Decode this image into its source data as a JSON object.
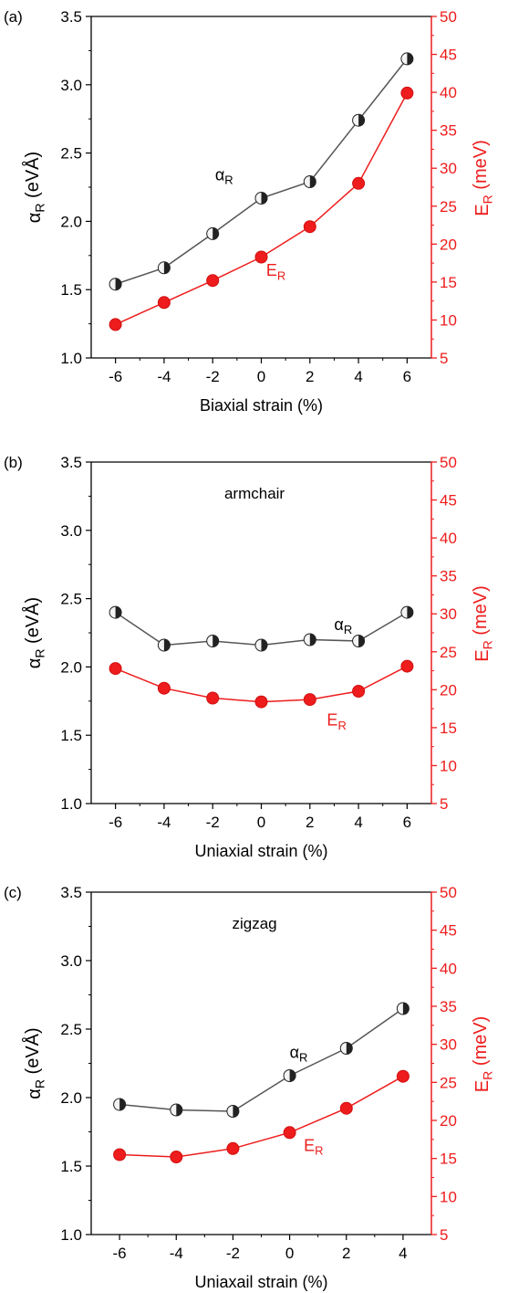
{
  "colors": {
    "left_axis": "#000000",
    "right_axis": "#ee1c1c",
    "alpha_line": "#555555",
    "energy_line": "#ee1c1c"
  },
  "chart_data": [
    {
      "type": "line",
      "panel_label": "(a)",
      "inner_label": "",
      "xlabel": "Biaxial strain (%)",
      "ylabel_left": {
        "main": "α",
        "sub": "R",
        "rest": " (eVÅ)"
      },
      "ylabel_right": {
        "main": "E",
        "sub": "R",
        "rest": " (meV)"
      },
      "xlim": [
        -7,
        7
      ],
      "xticks": [
        -6,
        -4,
        -2,
        0,
        2,
        4,
        6
      ],
      "xtick_labels": [
        "-6",
        "-4",
        "-2",
        "0",
        "2",
        "4",
        "6"
      ],
      "ylim_left": [
        1.0,
        3.5
      ],
      "yticks_left": [
        1.0,
        1.5,
        2.0,
        2.5,
        3.0,
        3.5
      ],
      "ytick_labels_left": [
        "1.0",
        "1.5",
        "2.0",
        "2.5",
        "3.0",
        "3.5"
      ],
      "ylim_right": [
        5,
        50
      ],
      "yticks_right": [
        5,
        10,
        15,
        20,
        25,
        30,
        35,
        40,
        45,
        50
      ],
      "ytick_labels_right": [
        "5",
        "10",
        "15",
        "20",
        "25",
        "30",
        "35",
        "40",
        "45",
        "50"
      ],
      "x": [
        -6,
        -4,
        -2,
        0,
        2,
        4,
        6
      ],
      "series": [
        {
          "name": {
            "main": "α",
            "sub": "R"
          },
          "axis": "left",
          "values": [
            1.54,
            1.66,
            1.91,
            2.17,
            2.29,
            2.74,
            3.19
          ]
        },
        {
          "name": {
            "main": "E",
            "sub": "R"
          },
          "axis": "right",
          "values": [
            9.4,
            12.3,
            15.2,
            18.3,
            22.3,
            28.0,
            39.9
          ]
        }
      ],
      "annotations": [
        {
          "series": 0,
          "x": -1.9,
          "y": 2.3,
          "axis": "left"
        },
        {
          "series": 1,
          "x": 0.2,
          "y": 1.6,
          "axis": "left"
        }
      ]
    },
    {
      "type": "line",
      "panel_label": "(b)",
      "inner_label": "armchair",
      "xlabel": "Uniaxial strain (%)",
      "ylabel_left": {
        "main": "α",
        "sub": "R",
        "rest": " (eVÅ)"
      },
      "ylabel_right": {
        "main": "E",
        "sub": "R",
        "rest": " (meV)"
      },
      "xlim": [
        -7,
        7
      ],
      "xticks": [
        -6,
        -4,
        -2,
        0,
        2,
        4,
        6
      ],
      "xtick_labels": [
        "-6",
        "-4",
        "-2",
        "0",
        "2",
        "4",
        "6"
      ],
      "ylim_left": [
        1.0,
        3.5
      ],
      "yticks_left": [
        1.0,
        1.5,
        2.0,
        2.5,
        3.0,
        3.5
      ],
      "ytick_labels_left": [
        "1.0",
        "1.5",
        "2.0",
        "2.5",
        "3.0",
        "3.5"
      ],
      "ylim_right": [
        5,
        50
      ],
      "yticks_right": [
        5,
        10,
        15,
        20,
        25,
        30,
        35,
        40,
        45,
        50
      ],
      "ytick_labels_right": [
        "5",
        "10",
        "15",
        "20",
        "25",
        "30",
        "35",
        "40",
        "45",
        "50"
      ],
      "x": [
        -6,
        -4,
        -2,
        0,
        2,
        4,
        6
      ],
      "series": [
        {
          "name": {
            "main": "α",
            "sub": "R"
          },
          "axis": "left",
          "values": [
            2.4,
            2.16,
            2.19,
            2.16,
            2.2,
            2.19,
            2.4
          ]
        },
        {
          "name": {
            "main": "E",
            "sub": "R"
          },
          "axis": "right",
          "values": [
            22.8,
            20.2,
            18.9,
            18.4,
            18.7,
            19.8,
            23.1
          ]
        }
      ],
      "annotations": [
        {
          "series": 0,
          "x": 3.0,
          "y": 2.27,
          "axis": "left"
        },
        {
          "series": 1,
          "x": 2.7,
          "y": 1.57,
          "axis": "left"
        }
      ]
    },
    {
      "type": "line",
      "panel_label": "(c)",
      "inner_label": "zigzag",
      "xlabel": "Uniaxail  strain (%)",
      "ylabel_left": {
        "main": "α",
        "sub": "R",
        "rest": " (eVÅ)"
      },
      "ylabel_right": {
        "main": "E",
        "sub": "R",
        "rest": " (meV)"
      },
      "xlim": [
        -7,
        5
      ],
      "xticks": [
        -6,
        -4,
        -2,
        0,
        2,
        4
      ],
      "xtick_labels": [
        "-6",
        "-4",
        "-2",
        "0",
        "2",
        "4"
      ],
      "ylim_left": [
        1.0,
        3.5
      ],
      "yticks_left": [
        1.0,
        1.5,
        2.0,
        2.5,
        3.0,
        3.5
      ],
      "ytick_labels_left": [
        "1.0",
        "1.5",
        "2.0",
        "2.5",
        "3.0",
        "3.5"
      ],
      "ylim_right": [
        5,
        50
      ],
      "yticks_right": [
        5,
        10,
        15,
        20,
        25,
        30,
        35,
        40,
        45,
        50
      ],
      "ytick_labels_right": [
        "5",
        "10",
        "15",
        "20",
        "25",
        "30",
        "35",
        "40",
        "45",
        "50"
      ],
      "x": [
        -6,
        -4,
        -2,
        0,
        2,
        4
      ],
      "series": [
        {
          "name": {
            "main": "α",
            "sub": "R"
          },
          "axis": "left",
          "values": [
            1.95,
            1.91,
            1.9,
            2.16,
            2.36,
            2.65
          ]
        },
        {
          "name": {
            "main": "E",
            "sub": "R"
          },
          "axis": "right",
          "values": [
            15.5,
            15.2,
            16.3,
            18.4,
            21.6,
            25.8
          ]
        }
      ],
      "annotations": [
        {
          "series": 0,
          "x": 0.0,
          "y": 2.29,
          "axis": "left"
        },
        {
          "series": 1,
          "x": 0.5,
          "y": 1.61,
          "axis": "left"
        }
      ]
    }
  ]
}
